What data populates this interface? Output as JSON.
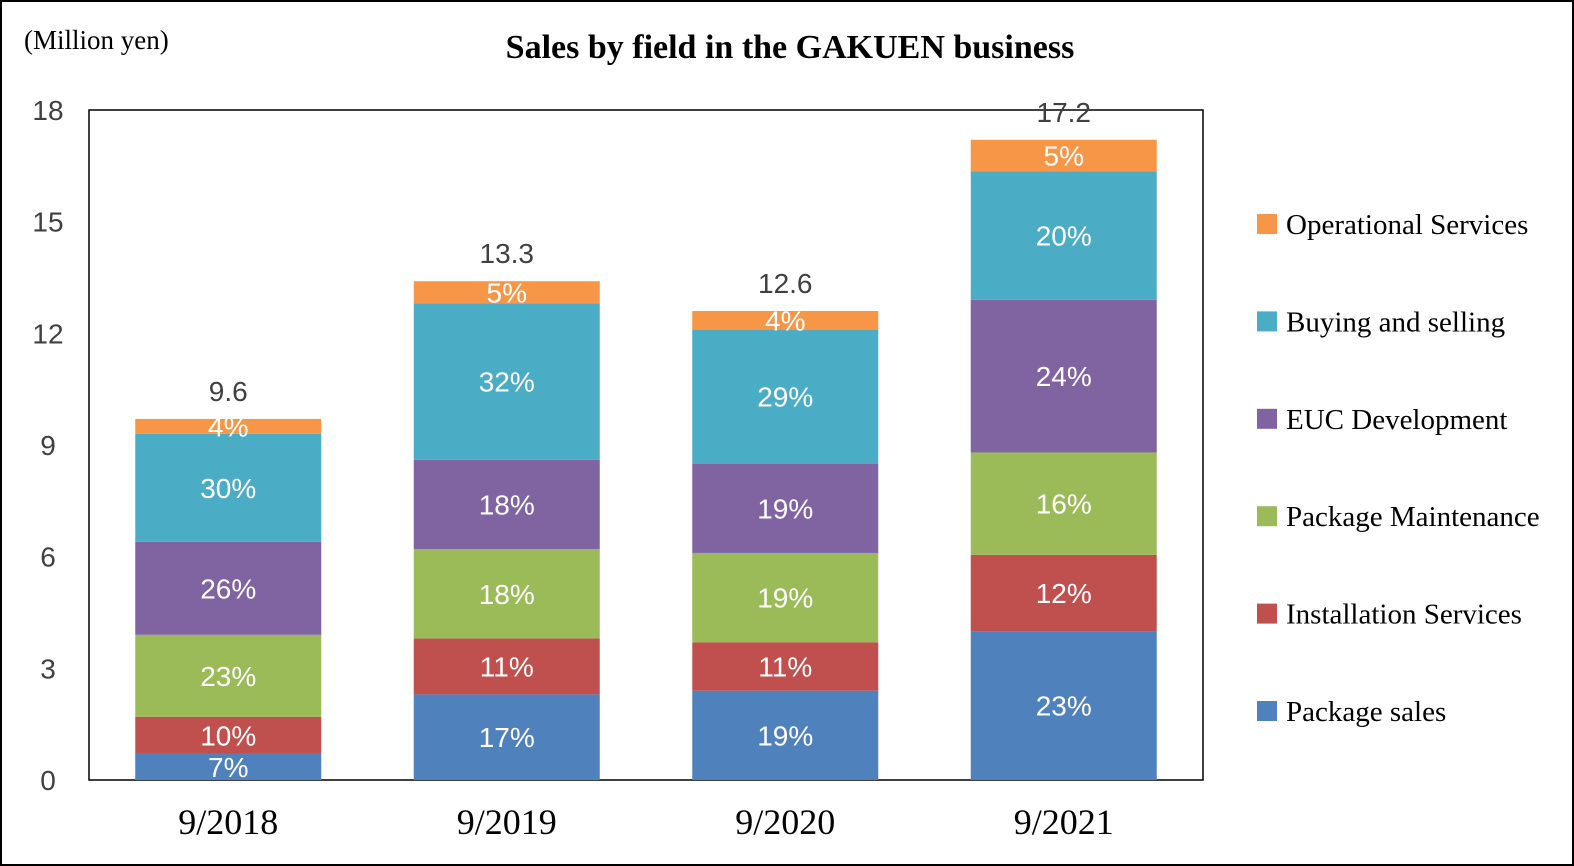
{
  "chart_data": {
    "type": "bar",
    "stacked": true,
    "title": "Sales by field in the GAKUEN business",
    "unit_label": "(Million yen)",
    "categories": [
      "9/2018",
      "9/2019",
      "9/2020",
      "9/2021"
    ],
    "totals": [
      "9.6",
      "13.3",
      "12.6",
      "17.2"
    ],
    "ylim": [
      0,
      18
    ],
    "yticks": [
      0,
      3,
      6,
      9,
      12,
      15,
      18
    ],
    "grid": false,
    "legend_position": "right",
    "series": [
      {
        "name": "Package sales",
        "color": "#4f81bd",
        "values": [
          0.7,
          2.3,
          2.4,
          4.0
        ],
        "labels": [
          "7%",
          "17%",
          "19%",
          "23%"
        ]
      },
      {
        "name": "Installation Services",
        "color": "#c0504d",
        "values": [
          1.0,
          1.5,
          1.3,
          2.05
        ],
        "labels": [
          "10%",
          "11%",
          "11%",
          "12%"
        ]
      },
      {
        "name": "Package Maintenance",
        "color": "#9bbb59",
        "values": [
          2.2,
          2.4,
          2.4,
          2.75
        ],
        "labels": [
          "23%",
          "18%",
          "19%",
          "16%"
        ]
      },
      {
        "name": "EUC Development",
        "color": "#8064a2",
        "values": [
          2.5,
          2.4,
          2.4,
          4.1
        ],
        "labels": [
          "26%",
          "18%",
          "19%",
          "24%"
        ]
      },
      {
        "name": "Buying and selling",
        "color": "#4bacc6",
        "values": [
          2.9,
          4.2,
          3.6,
          3.45
        ],
        "labels": [
          "30%",
          "32%",
          "29%",
          "20%"
        ]
      },
      {
        "name": "Operational Services",
        "color": "#f79646",
        "values": [
          0.4,
          0.6,
          0.5,
          0.85
        ],
        "labels": [
          "4%",
          "5%",
          "4%",
          "5%"
        ]
      }
    ]
  }
}
